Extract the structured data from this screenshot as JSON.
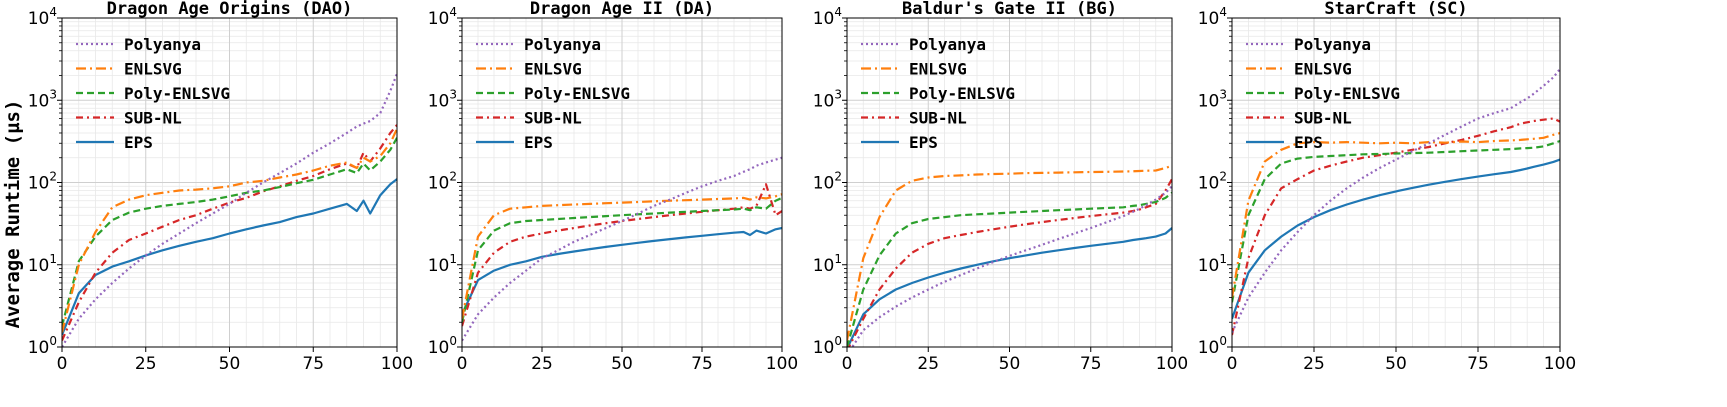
{
  "figure": {
    "ylabel": "Average Runtime (µs)"
  },
  "chart_data": [
    {
      "type": "line",
      "title": "Dragon Age Origins (DAO)",
      "xlabel": "",
      "ylabel": "Average Runtime (µs)",
      "xlim": [
        0,
        100
      ],
      "ylim": [
        1,
        10000
      ],
      "yscale": "log",
      "xticks": [
        0,
        25,
        50,
        75,
        100
      ],
      "grid": true,
      "legend_position": "top-left",
      "x": [
        0,
        5,
        10,
        15,
        20,
        25,
        30,
        35,
        40,
        45,
        50,
        55,
        60,
        65,
        70,
        75,
        80,
        85,
        88,
        90,
        92,
        95,
        98,
        100
      ],
      "series": [
        {
          "name": "Polyanya",
          "color": "#9467bd",
          "dash": "dotted",
          "values": [
            1.0,
            2.2,
            3.8,
            6.0,
            9.0,
            13,
            18,
            24,
            32,
            42,
            55,
            75,
            100,
            130,
            170,
            230,
            300,
            400,
            480,
            520,
            560,
            700,
            1300,
            2100
          ]
        },
        {
          "name": "ENLSVG",
          "color": "#ff7f0e",
          "dash": "dashdot",
          "values": [
            1.5,
            10,
            25,
            50,
            62,
            70,
            75,
            80,
            82,
            85,
            90,
            100,
            105,
            115,
            125,
            140,
            160,
            175,
            150,
            200,
            180,
            210,
            300,
            450
          ]
        },
        {
          "name": "Poly-ENLSVG",
          "color": "#2ca02c",
          "dash": "dashed",
          "values": [
            1.8,
            11,
            22,
            35,
            43,
            48,
            52,
            55,
            58,
            62,
            68,
            75,
            80,
            88,
            98,
            108,
            125,
            145,
            130,
            170,
            140,
            180,
            250,
            350
          ]
        },
        {
          "name": "SUB-NL",
          "color": "#d62728",
          "dash": "dashdot2",
          "values": [
            1.2,
            3.5,
            8,
            14,
            20,
            24,
            29,
            35,
            40,
            48,
            57,
            65,
            78,
            90,
            105,
            120,
            145,
            170,
            150,
            230,
            180,
            260,
            400,
            500
          ]
        },
        {
          "name": "EPS",
          "color": "#1f77b4",
          "dash": "solid",
          "values": [
            1.4,
            4.5,
            7.5,
            9.5,
            11,
            13,
            15,
            17,
            19,
            21,
            24,
            27,
            30,
            33,
            38,
            42,
            48,
            55,
            45,
            60,
            42,
            70,
            95,
            110
          ]
        }
      ]
    },
    {
      "type": "line",
      "title": "Dragon Age II (DA)",
      "xlabel": "",
      "ylabel": "",
      "xlim": [
        0,
        100
      ],
      "ylim": [
        1,
        10000
      ],
      "yscale": "log",
      "xticks": [
        0,
        25,
        50,
        75,
        100
      ],
      "grid": true,
      "legend_position": "top-left",
      "x": [
        0,
        5,
        10,
        15,
        20,
        25,
        30,
        35,
        40,
        45,
        50,
        55,
        60,
        65,
        70,
        75,
        80,
        85,
        88,
        90,
        92,
        95,
        98,
        100
      ],
      "series": [
        {
          "name": "Polyanya",
          "color": "#9467bd",
          "dash": "dotted",
          "values": [
            1.2,
            2.5,
            4,
            6,
            8.5,
            12,
            15,
            19,
            23,
            28,
            34,
            42,
            52,
            62,
            75,
            90,
            105,
            120,
            135,
            145,
            160,
            175,
            190,
            200
          ]
        },
        {
          "name": "ENLSVG",
          "color": "#ff7f0e",
          "dash": "dashdot",
          "values": [
            2.2,
            22,
            40,
            48,
            50,
            52,
            53,
            54,
            55,
            56,
            57,
            58,
            59,
            60,
            61,
            62,
            63,
            64,
            65,
            62,
            66,
            64,
            68,
            72
          ]
        },
        {
          "name": "Poly-ENLSVG",
          "color": "#2ca02c",
          "dash": "dashed",
          "values": [
            2.0,
            15,
            26,
            32,
            34,
            35,
            36,
            37,
            38,
            39,
            40,
            41,
            42,
            43,
            44,
            45,
            46,
            47,
            48,
            46,
            50,
            48,
            60,
            65
          ]
        },
        {
          "name": "SUB-NL",
          "color": "#d62728",
          "dash": "dashdot2",
          "values": [
            1.8,
            8,
            14,
            19,
            22,
            24,
            26,
            28,
            30,
            32,
            34,
            36,
            38,
            40,
            42,
            44,
            46,
            48,
            50,
            48,
            52,
            95,
            40,
            45
          ]
        },
        {
          "name": "EPS",
          "color": "#1f77b4",
          "dash": "solid",
          "values": [
            2.5,
            6.5,
            8.5,
            10,
            11,
            12.5,
            13.5,
            14.5,
            15.5,
            16.5,
            17.5,
            18.5,
            19.5,
            20.5,
            21.5,
            22.5,
            23.5,
            24.5,
            25,
            23,
            26,
            24,
            27,
            28
          ]
        }
      ]
    },
    {
      "type": "line",
      "title": "Baldur's Gate II (BG)",
      "xlabel": "",
      "ylabel": "",
      "xlim": [
        0,
        100
      ],
      "ylim": [
        1,
        10000
      ],
      "yscale": "log",
      "xticks": [
        0,
        25,
        50,
        75,
        100
      ],
      "grid": true,
      "legend_position": "top-left",
      "x": [
        0,
        5,
        10,
        15,
        20,
        25,
        30,
        35,
        40,
        45,
        50,
        55,
        60,
        65,
        70,
        75,
        80,
        85,
        88,
        90,
        92,
        95,
        98,
        100
      ],
      "series": [
        {
          "name": "Polyanya",
          "color": "#9467bd",
          "dash": "dotted",
          "values": [
            0.8,
            1.6,
            2.3,
            3.1,
            4.0,
            5.0,
            6.2,
            7.5,
            9.0,
            10.8,
            12.8,
            15,
            17.5,
            20.5,
            24,
            28,
            33,
            39,
            44,
            48,
            53,
            62,
            75,
            90
          ]
        },
        {
          "name": "ENLSVG",
          "color": "#ff7f0e",
          "dash": "dashdot",
          "values": [
            1.2,
            12,
            38,
            80,
            105,
            115,
            120,
            122,
            125,
            127,
            128,
            130,
            131,
            132,
            133,
            134,
            135,
            136,
            137,
            138,
            139,
            140,
            150,
            160
          ]
        },
        {
          "name": "Poly-ENLSVG",
          "color": "#2ca02c",
          "dash": "dashed",
          "values": [
            1.0,
            5,
            13,
            24,
            32,
            36,
            38,
            40,
            41,
            42,
            43,
            44,
            45,
            46,
            47,
            48,
            49,
            50,
            52,
            53,
            55,
            58,
            65,
            75
          ]
        },
        {
          "name": "SUB-NL",
          "color": "#d62728",
          "dash": "dashdot2",
          "values": [
            0.9,
            2.2,
            5,
            9,
            14,
            18,
            21,
            23,
            25,
            27,
            29,
            31,
            33,
            35,
            37,
            39,
            41,
            43,
            45,
            47,
            50,
            55,
            80,
            110
          ]
        },
        {
          "name": "EPS",
          "color": "#1f77b4",
          "dash": "solid",
          "values": [
            0.95,
            2.5,
            3.8,
            5,
            6,
            7,
            8,
            9,
            10,
            11,
            12,
            13,
            14,
            15,
            16,
            17,
            18,
            19,
            20,
            20.5,
            21,
            22,
            24,
            28
          ]
        }
      ]
    },
    {
      "type": "line",
      "title": "StarCraft (SC)",
      "xlabel": "",
      "ylabel": "",
      "xlim": [
        0,
        100
      ],
      "ylim": [
        1,
        10000
      ],
      "yscale": "log",
      "xticks": [
        0,
        25,
        50,
        75,
        100
      ],
      "grid": true,
      "legend_position": "top-left",
      "x": [
        0,
        5,
        10,
        15,
        20,
        25,
        30,
        35,
        40,
        45,
        50,
        55,
        60,
        65,
        70,
        75,
        80,
        85,
        88,
        90,
        92,
        95,
        98,
        100
      ],
      "series": [
        {
          "name": "Polyanya",
          "color": "#9467bd",
          "dash": "dotted",
          "values": [
            1.5,
            4,
            8,
            15,
            25,
            40,
            60,
            85,
            115,
            150,
            190,
            240,
            300,
            380,
            480,
            600,
            700,
            800,
            950,
            1050,
            1200,
            1500,
            1900,
            2400
          ]
        },
        {
          "name": "ENLSVG",
          "color": "#ff7f0e",
          "dash": "dashdot",
          "values": [
            4,
            60,
            180,
            250,
            300,
            310,
            305,
            310,
            305,
            300,
            305,
            300,
            310,
            305,
            315,
            310,
            320,
            325,
            330,
            335,
            340,
            350,
            380,
            400
          ]
        },
        {
          "name": "Poly-ENLSVG",
          "color": "#2ca02c",
          "dash": "dashed",
          "values": [
            3.5,
            40,
            110,
            170,
            195,
            205,
            210,
            215,
            220,
            222,
            225,
            228,
            230,
            235,
            240,
            245,
            250,
            255,
            260,
            262,
            265,
            275,
            300,
            320
          ]
        },
        {
          "name": "SUB-NL",
          "color": "#d62728",
          "dash": "dashdot2",
          "values": [
            1.4,
            12,
            40,
            85,
            110,
            140,
            160,
            180,
            200,
            215,
            230,
            250,
            270,
            300,
            330,
            370,
            420,
            470,
            520,
            540,
            560,
            580,
            600,
            550
          ]
        },
        {
          "name": "EPS",
          "color": "#1f77b4",
          "dash": "solid",
          "values": [
            2.2,
            8,
            15,
            22,
            30,
            38,
            46,
            54,
            62,
            70,
            78,
            86,
            94,
            102,
            110,
            118,
            126,
            134,
            142,
            148,
            155,
            165,
            178,
            190
          ]
        }
      ]
    }
  ]
}
